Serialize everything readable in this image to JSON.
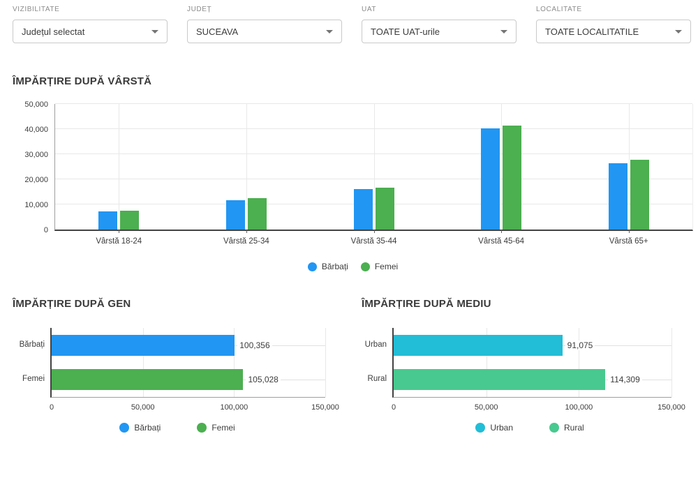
{
  "filters": [
    {
      "label": "VIZIBILITATE",
      "value": "Județul selectat"
    },
    {
      "label": "JUDEȚ",
      "value": "SUCEAVA"
    },
    {
      "label": "UAT",
      "value": "TOATE UAT-urile"
    },
    {
      "label": "LOCALITATE",
      "value": "TOATE LOCALITATILE"
    }
  ],
  "colors": {
    "barbati_blue": "#2196F3",
    "femei_green": "#4CAF50",
    "urban_cyan": "#22BDD6",
    "rural_green": "#48C98F",
    "grid": "#e8e8e8",
    "axis": "#424242"
  },
  "chart_data": [
    {
      "type": "bar",
      "title": "ÎMPĂRȚIRE DUPĂ VÂRSTĂ",
      "categories": [
        "Vârstă 18-24",
        "Vârstă 25-34",
        "Vârstă 35-44",
        "Vârstă 45-64",
        "Vârstă 65+"
      ],
      "series": [
        {
          "name": "Bărbați",
          "color": "#2196F3",
          "values": [
            7200,
            11600,
            16200,
            40400,
            26300
          ]
        },
        {
          "name": "Femei",
          "color": "#4CAF50",
          "values": [
            7600,
            12600,
            16700,
            41300,
            27800
          ]
        }
      ],
      "ylim": [
        0,
        50000
      ],
      "yticks": [
        "0",
        "10,000",
        "20,000",
        "30,000",
        "40,000",
        "50,000"
      ],
      "legend_position": "bottom-center",
      "grid": true
    },
    {
      "type": "bar",
      "orientation": "horizontal",
      "title": "ÎMPĂRȚIRE DUPĂ GEN",
      "categories": [
        "Bărbați",
        "Femei"
      ],
      "values": [
        100356,
        105028
      ],
      "value_labels": [
        "100,356",
        "105,028"
      ],
      "bar_colors": [
        "#2196F3",
        "#4CAF50"
      ],
      "xlim": [
        0,
        150000
      ],
      "xticks": [
        "0",
        "50,000",
        "100,000",
        "150,000"
      ],
      "legend": [
        {
          "label": "Bărbați",
          "color": "#2196F3"
        },
        {
          "label": "Femei",
          "color": "#4CAF50"
        }
      ],
      "legend_position": "bottom-center",
      "grid": true
    },
    {
      "type": "bar",
      "orientation": "horizontal",
      "title": "ÎMPĂRȚIRE DUPĂ MEDIU",
      "categories": [
        "Urban",
        "Rural"
      ],
      "values": [
        91075,
        114309
      ],
      "value_labels": [
        "91,075",
        "114,309"
      ],
      "bar_colors": [
        "#22BDD6",
        "#48C98F"
      ],
      "xlim": [
        0,
        150000
      ],
      "xticks": [
        "0",
        "50,000",
        "100,000",
        "150,000"
      ],
      "legend": [
        {
          "label": "Urban",
          "color": "#22BDD6"
        },
        {
          "label": "Rural",
          "color": "#48C98F"
        }
      ],
      "legend_position": "bottom-center",
      "grid": true
    }
  ]
}
